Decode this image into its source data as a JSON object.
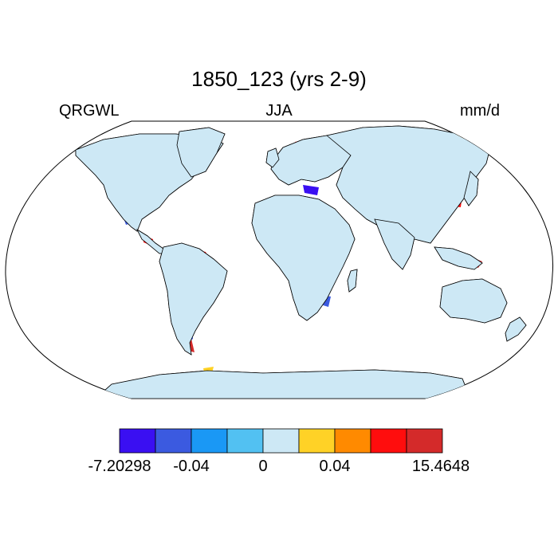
{
  "title": "1850_123 (yrs 2-9)",
  "variable": "QRGWL",
  "season": "JJA",
  "units": "mm/d",
  "colorbar": {
    "colors": [
      "#3a0ff2",
      "#3b5ae0",
      "#1a98f5",
      "#52c1f2",
      "#cde8f5",
      "#ffd226",
      "#ff8a00",
      "#ff0d0d",
      "#d42a2a"
    ],
    "labels": [
      "-7.20298",
      "-0.04",
      "0",
      "0.04",
      "15.4648"
    ]
  },
  "colors": {
    "land_base": "#cde8f5",
    "coast": "#000000",
    "frame": "#000000"
  }
}
